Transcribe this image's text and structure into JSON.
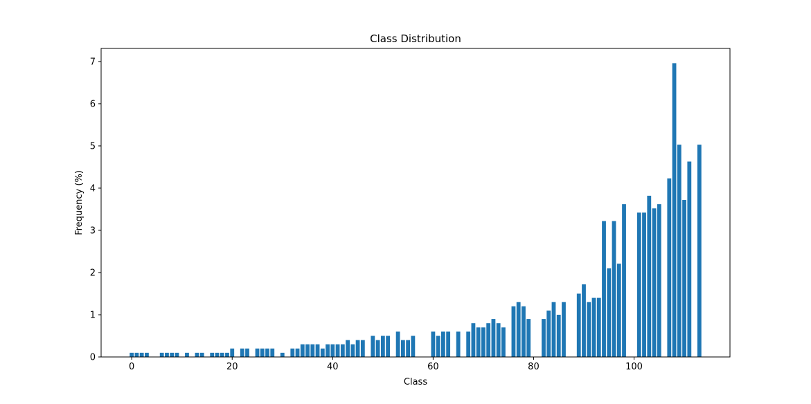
{
  "chart_data": {
    "type": "bar",
    "title": "Class Distribution",
    "x_label": "Class",
    "y_label": "Frequency (%)",
    "x": [
      0,
      1,
      2,
      3,
      6,
      7,
      8,
      9,
      11,
      13,
      14,
      16,
      17,
      18,
      19,
      20,
      22,
      23,
      25,
      26,
      27,
      28,
      30,
      32,
      33,
      34,
      35,
      36,
      37,
      38,
      39,
      40,
      41,
      42,
      43,
      44,
      45,
      46,
      48,
      49,
      50,
      51,
      53,
      54,
      55,
      56,
      60,
      61,
      62,
      63,
      65,
      67,
      68,
      69,
      70,
      71,
      72,
      73,
      74,
      76,
      77,
      78,
      79,
      82,
      83,
      84,
      85,
      86,
      89,
      90,
      91,
      92,
      93,
      94,
      95,
      96,
      97,
      98,
      101,
      102,
      103,
      104,
      105,
      107,
      108,
      109,
      110,
      111,
      113
    ],
    "values": [
      0.1,
      0.1,
      0.1,
      0.1,
      0.1,
      0.1,
      0.1,
      0.1,
      0.1,
      0.1,
      0.1,
      0.1,
      0.1,
      0.1,
      0.1,
      0.2,
      0.2,
      0.2,
      0.2,
      0.2,
      0.2,
      0.2,
      0.1,
      0.2,
      0.2,
      0.3,
      0.3,
      0.3,
      0.3,
      0.2,
      0.3,
      0.3,
      0.3,
      0.3,
      0.4,
      0.3,
      0.4,
      0.4,
      0.5,
      0.4,
      0.5,
      0.5,
      0.6,
      0.4,
      0.4,
      0.5,
      0.6,
      0.5,
      0.6,
      0.6,
      0.6,
      0.6,
      0.8,
      0.7,
      0.7,
      0.8,
      0.9,
      0.8,
      0.7,
      1.2,
      1.3,
      1.2,
      0.9,
      0.9,
      1.1,
      1.3,
      1.0,
      1.3,
      1.5,
      1.72,
      1.3,
      1.4,
      1.4,
      3.22,
      2.1,
      3.22,
      2.21,
      3.62,
      3.42,
      3.42,
      3.82,
      3.52,
      3.62,
      4.23,
      6.96,
      5.03,
      3.72,
      4.63,
      5.03
    ],
    "color": "#1f77b4",
    "bar_width": 0.8,
    "xlim": [
      -6.09,
      119.09
    ],
    "xticks": [
      0,
      20,
      40,
      60,
      80,
      100
    ],
    "ylim": [
      0,
      7.31
    ],
    "yticks": [
      0,
      1,
      2,
      3,
      4,
      5,
      6,
      7
    ]
  }
}
